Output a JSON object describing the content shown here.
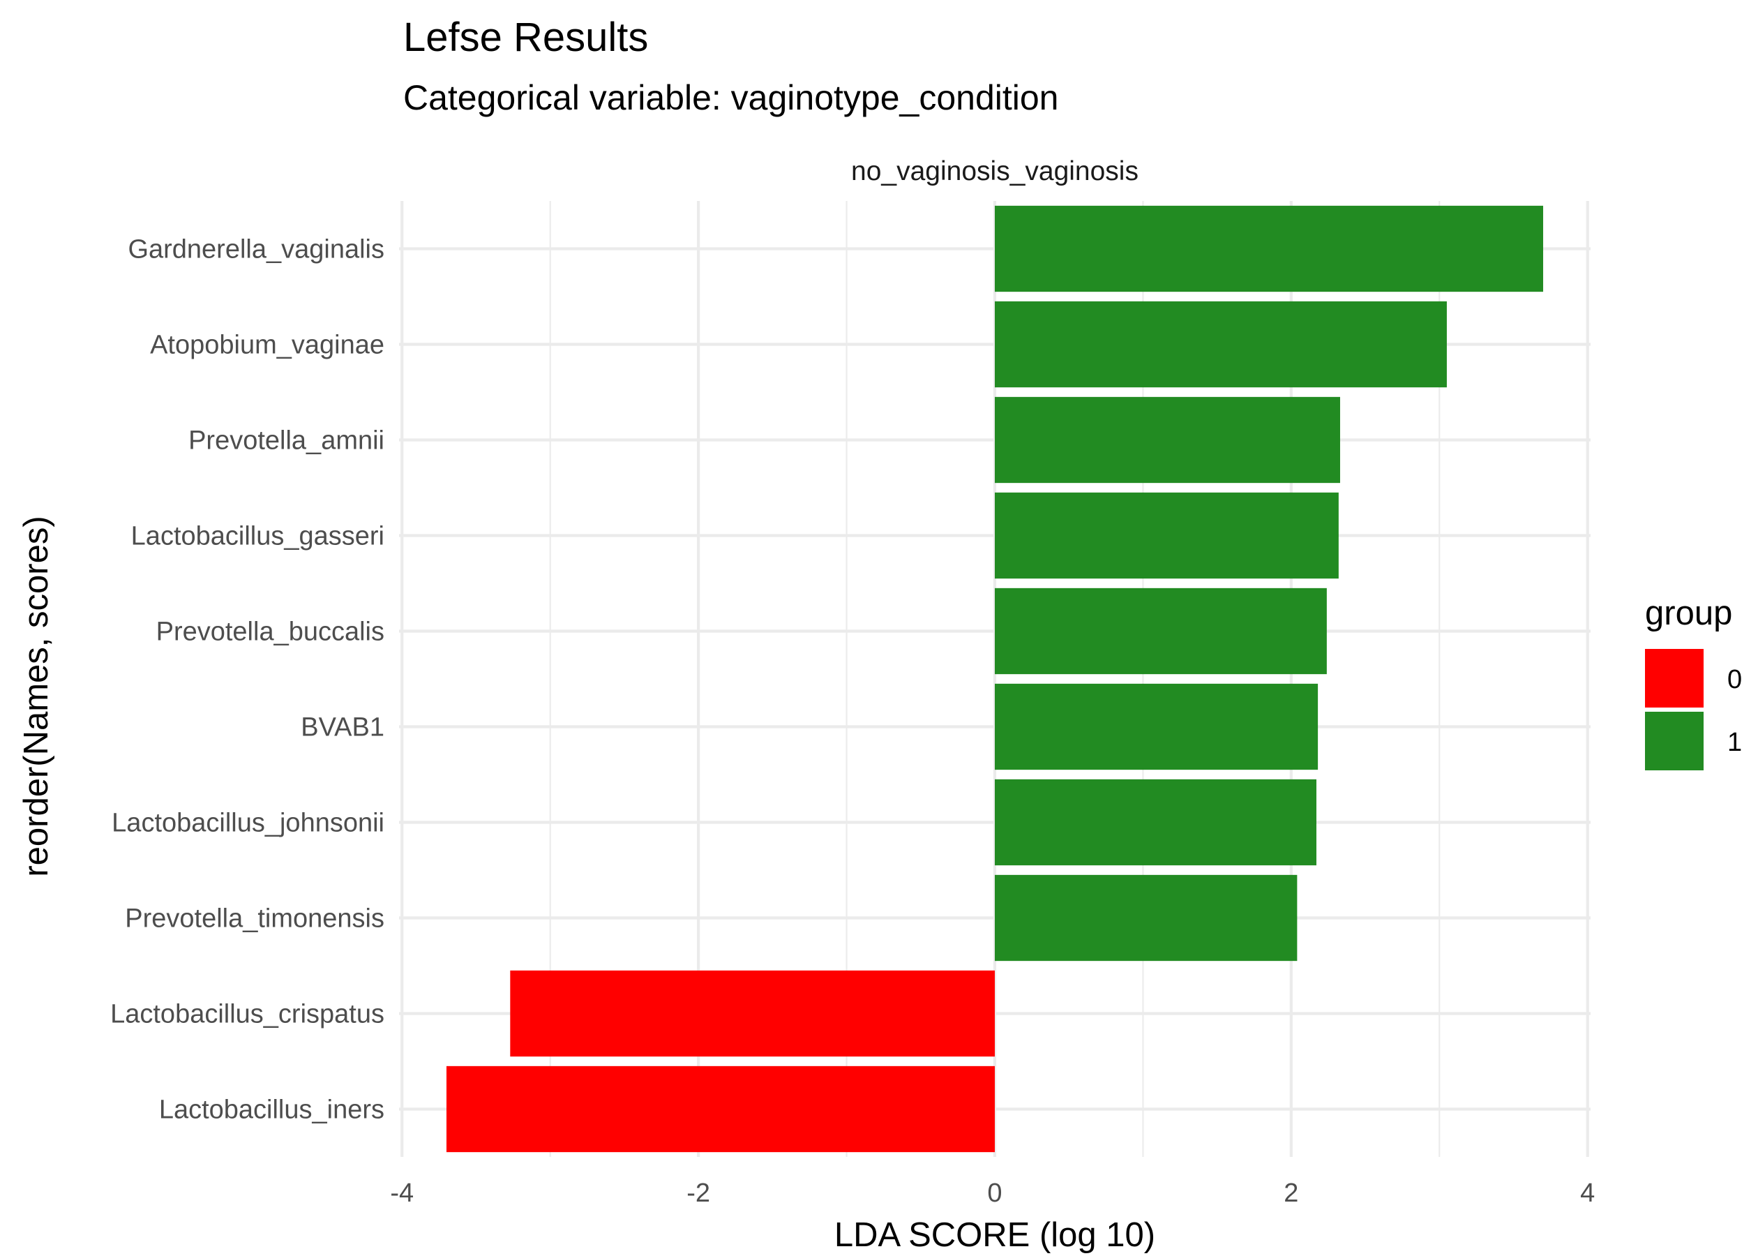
{
  "chart_data": {
    "type": "bar",
    "orientation": "horizontal",
    "title": "Lefse Results",
    "subtitle": "Categorical variable: vaginotype_condition",
    "facet_label": "no_vaginosis_vaginosis",
    "xlabel": "LDA SCORE (log 10)",
    "ylabel": "reorder(Names, scores)",
    "xlim": [
      -4.02,
      4.02
    ],
    "xticks": [
      -4,
      -2,
      0,
      2,
      4
    ],
    "xtick_labels": [
      "-4",
      "-2",
      "0",
      "2",
      "4"
    ],
    "grid": true,
    "legend": {
      "title": "group",
      "position": "right",
      "entries": [
        {
          "label": "0",
          "color": "#ff0000"
        },
        {
          "label": "1",
          "color": "#228b22"
        }
      ]
    },
    "categories": [
      "Gardnerella_vaginalis",
      "Atopobium_vaginae",
      "Prevotella_amnii",
      "Lactobacillus_gasseri",
      "Prevotella_buccalis",
      "BVAB1",
      "Lactobacillus_johnsonii",
      "Prevotella_timonensis",
      "Lactobacillus_crispatus",
      "Lactobacillus_iners"
    ],
    "values": [
      3.7,
      3.05,
      2.33,
      2.32,
      2.24,
      2.18,
      2.17,
      2.04,
      -3.27,
      -3.7
    ],
    "groups": [
      "1",
      "1",
      "1",
      "1",
      "1",
      "1",
      "1",
      "1",
      "0",
      "0"
    ]
  }
}
